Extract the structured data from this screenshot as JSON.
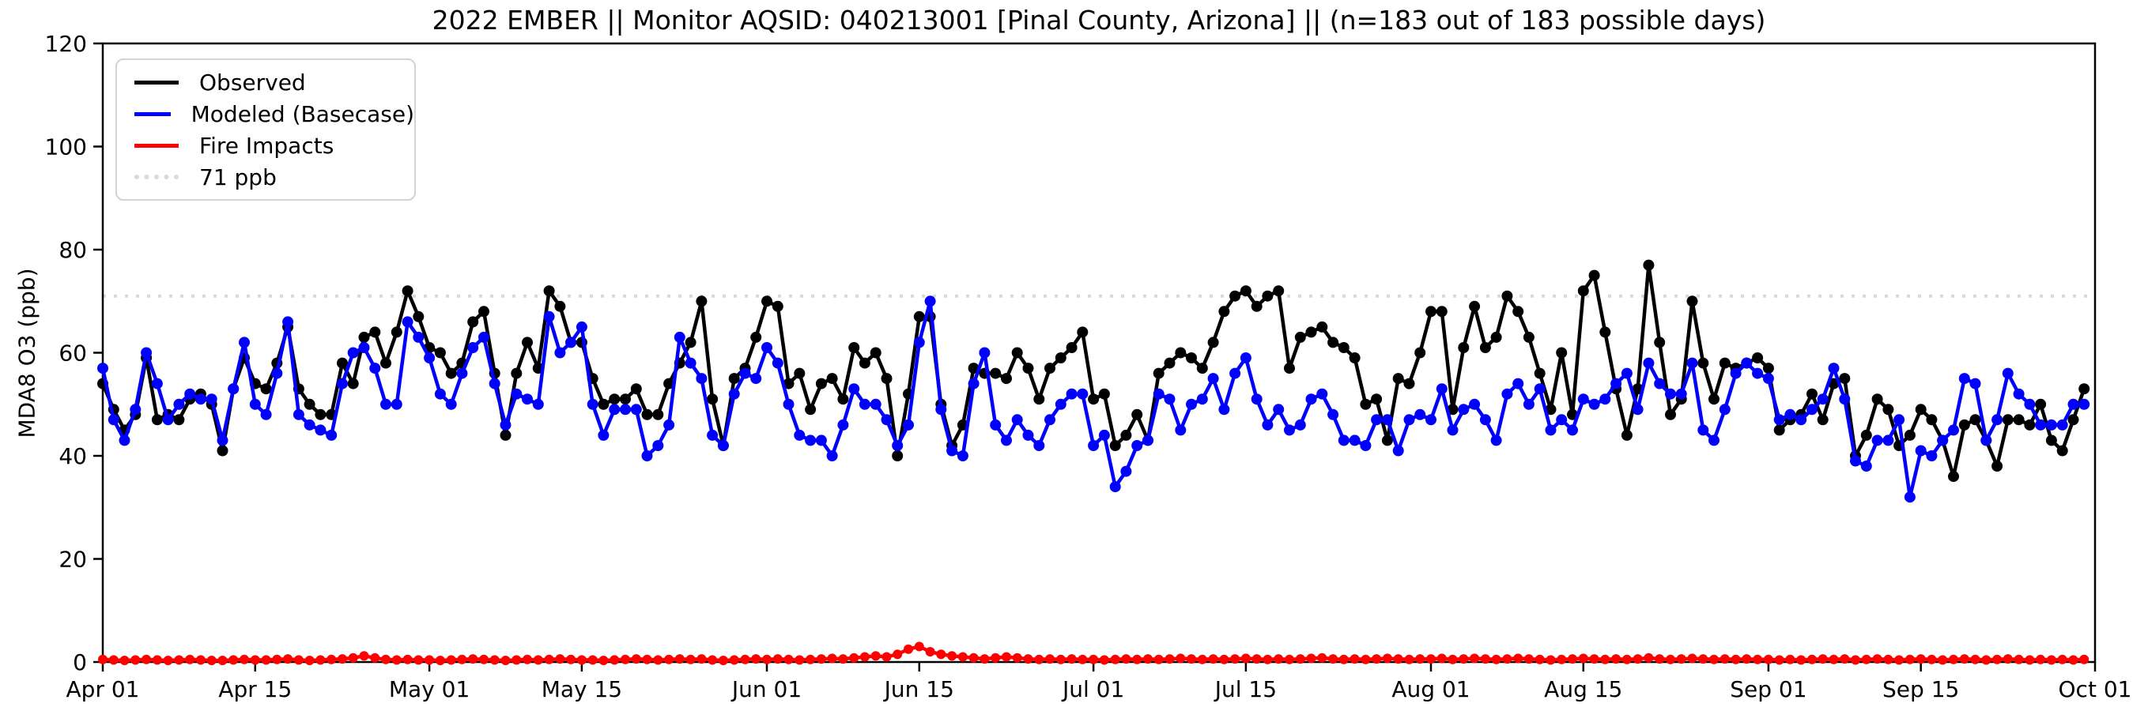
{
  "page": {
    "background": "#ffffff"
  },
  "chart_data": {
    "type": "line",
    "title": "2022 EMBER || Monitor AQSID: 040213001 [Pinal County, Arizona] || (n=183 out of 183 possible days)",
    "ylabel": "MDA8 O3 (ppb)",
    "xlabel": "",
    "ylim": [
      0,
      120
    ],
    "y_ticks": [
      0,
      20,
      40,
      60,
      80,
      100,
      120
    ],
    "n_days": 183,
    "x_start": "Apr 01",
    "x_end": "Oct 01",
    "x_tick_labels": [
      "Apr 01",
      "Apr 15",
      "May 01",
      "May 15",
      "Jun 01",
      "Jun 15",
      "Jul 01",
      "Jul 15",
      "Aug 01",
      "Aug 15",
      "Sep 01",
      "Sep 15",
      "Oct 01"
    ],
    "x_tick_day_index": [
      0,
      14,
      30,
      44,
      61,
      75,
      91,
      105,
      122,
      136,
      153,
      167,
      183
    ],
    "grid": false,
    "legend_position": "upper left",
    "threshold": {
      "value": 71,
      "label": "71 ppb",
      "color": "#d9d9d9"
    },
    "series": [
      {
        "name": "Observed",
        "color": "#000000",
        "values": [
          54,
          49,
          45,
          48,
          59,
          47,
          48,
          47,
          51,
          52,
          50,
          41,
          53,
          59,
          54,
          53,
          58,
          65,
          53,
          50,
          48,
          48,
          58,
          54,
          63,
          64,
          58,
          64,
          72,
          67,
          61,
          60,
          56,
          58,
          66,
          68,
          56,
          44,
          56,
          62,
          57,
          72,
          69,
          62,
          62,
          55,
          50,
          51,
          51,
          53,
          48,
          48,
          54,
          58,
          62,
          70,
          51,
          42,
          55,
          57,
          63,
          70,
          69,
          54,
          56,
          49,
          54,
          55,
          51,
          61,
          58,
          60,
          55,
          40,
          52,
          67,
          67,
          50,
          42,
          46,
          57,
          56,
          56,
          55,
          60,
          57,
          51,
          57,
          59,
          61,
          64,
          51,
          52,
          42,
          44,
          48,
          43,
          56,
          58,
          60,
          59,
          57,
          62,
          68,
          71,
          72,
          69,
          71,
          72,
          57,
          63,
          64,
          65,
          62,
          61,
          59,
          50,
          51,
          43,
          55,
          54,
          60,
          68,
          68,
          49,
          61,
          69,
          61,
          63,
          71,
          68,
          63,
          56,
          49,
          60,
          48,
          72,
          75,
          64,
          53,
          44,
          53,
          77,
          62,
          48,
          51,
          70,
          58,
          51,
          58,
          57,
          58,
          59,
          57,
          45,
          47,
          48,
          52,
          47,
          54,
          55,
          40,
          44,
          51,
          49,
          42,
          44,
          49,
          47,
          43,
          36,
          46,
          47,
          43,
          38,
          47,
          47,
          46,
          50,
          43,
          41,
          47,
          53
        ]
      },
      {
        "name": "Modeled (Basecase)",
        "color": "#0000ff",
        "values": [
          57,
          47,
          43,
          49,
          60,
          54,
          47,
          50,
          52,
          51,
          51,
          43,
          53,
          62,
          50,
          48,
          56,
          66,
          48,
          46,
          45,
          44,
          54,
          60,
          61,
          57,
          50,
          50,
          66,
          63,
          59,
          52,
          50,
          56,
          61,
          63,
          54,
          46,
          52,
          51,
          50,
          67,
          60,
          62,
          65,
          50,
          44,
          49,
          49,
          49,
          40,
          42,
          46,
          63,
          58,
          55,
          44,
          42,
          52,
          56,
          55,
          61,
          58,
          50,
          44,
          43,
          43,
          40,
          46,
          53,
          50,
          50,
          47,
          42,
          46,
          62,
          70,
          49,
          41,
          40,
          54,
          60,
          46,
          43,
          47,
          44,
          42,
          47,
          50,
          52,
          52,
          42,
          44,
          34,
          37,
          42,
          43,
          52,
          51,
          45,
          50,
          51,
          55,
          49,
          56,
          59,
          51,
          46,
          49,
          45,
          46,
          51,
          52,
          48,
          43,
          43,
          42,
          47,
          47,
          41,
          47,
          48,
          47,
          53,
          45,
          49,
          50,
          47,
          43,
          52,
          54,
          50,
          53,
          45,
          47,
          45,
          51,
          50,
          51,
          54,
          56,
          49,
          58,
          54,
          52,
          52,
          58,
          45,
          43,
          49,
          56,
          58,
          56,
          55,
          47,
          48,
          47,
          49,
          51,
          57,
          51,
          39,
          38,
          43,
          43,
          47,
          32,
          41,
          40,
          43,
          45,
          55,
          54,
          43,
          47,
          56,
          52,
          50,
          46,
          46,
          46,
          50,
          50
        ]
      },
      {
        "name": "Fire Impacts",
        "color": "#ff0000",
        "values": [
          0.5,
          0.4,
          0.3,
          0.4,
          0.5,
          0.4,
          0.3,
          0.4,
          0.5,
          0.4,
          0.3,
          0.3,
          0.4,
          0.5,
          0.4,
          0.4,
          0.5,
          0.6,
          0.4,
          0.3,
          0.4,
          0.5,
          0.6,
          0.8,
          1.2,
          0.8,
          0.5,
          0.4,
          0.5,
          0.4,
          0.4,
          0.3,
          0.4,
          0.5,
          0.6,
          0.5,
          0.4,
          0.3,
          0.4,
          0.5,
          0.4,
          0.5,
          0.6,
          0.5,
          0.4,
          0.4,
          0.3,
          0.4,
          0.5,
          0.6,
          0.5,
          0.4,
          0.5,
          0.6,
          0.5,
          0.6,
          0.4,
          0.3,
          0.4,
          0.5,
          0.6,
          0.5,
          0.6,
          0.5,
          0.4,
          0.5,
          0.6,
          0.7,
          0.6,
          0.8,
          1.0,
          1.2,
          1.0,
          1.5,
          2.5,
          3.0,
          2.0,
          1.5,
          1.2,
          1.0,
          0.8,
          0.6,
          0.8,
          1.0,
          0.8,
          0.6,
          0.5,
          0.6,
          0.5,
          0.6,
          0.5,
          0.5,
          0.4,
          0.5,
          0.6,
          0.5,
          0.6,
          0.5,
          0.6,
          0.7,
          0.6,
          0.5,
          0.6,
          0.5,
          0.6,
          0.7,
          0.6,
          0.5,
          0.6,
          0.5,
          0.6,
          0.7,
          0.8,
          0.6,
          0.5,
          0.6,
          0.5,
          0.6,
          0.7,
          0.6,
          0.5,
          0.6,
          0.6,
          0.7,
          0.5,
          0.6,
          0.7,
          0.6,
          0.5,
          0.6,
          0.7,
          0.6,
          0.5,
          0.4,
          0.5,
          0.6,
          0.7,
          0.6,
          0.5,
          0.6,
          0.5,
          0.6,
          0.8,
          0.6,
          0.5,
          0.6,
          0.7,
          0.6,
          0.5,
          0.6,
          0.5,
          0.6,
          0.5,
          0.5,
          0.4,
          0.5,
          0.4,
          0.5,
          0.6,
          0.5,
          0.6,
          0.4,
          0.5,
          0.6,
          0.5,
          0.4,
          0.5,
          0.6,
          0.5,
          0.4,
          0.5,
          0.6,
          0.5,
          0.4,
          0.5,
          0.6,
          0.5,
          0.4,
          0.5,
          0.4,
          0.5,
          0.4,
          0.5
        ]
      }
    ]
  },
  "axes": {
    "spine_color": "#000000",
    "tick_color": "#000000",
    "label_color": "#000000"
  }
}
